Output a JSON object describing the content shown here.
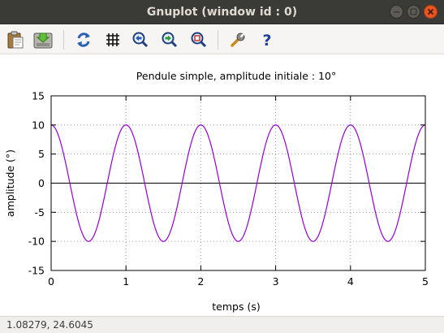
{
  "window": {
    "title": "Gnuplot (window id : 0)"
  },
  "toolbar": {
    "icons": [
      "clipboard-icon",
      "export-icon",
      "replot-icon",
      "grid-icon",
      "zoom-previous-icon",
      "zoom-next-icon",
      "unzoom-icon",
      "settings-icon",
      "help-icon"
    ]
  },
  "status": {
    "coordinates": "1.08279,  24.6045"
  },
  "colors": {
    "curve": "#9400d3",
    "close_button": "#e95420",
    "titlebar": "#3a3a37"
  },
  "chart_data": {
    "type": "line",
    "title": "Pendule simple, amplitude initiale : 10°",
    "xlabel": "temps (s)",
    "ylabel": "amplitude (°)",
    "xlim": [
      0,
      5
    ],
    "ylim": [
      -15,
      15
    ],
    "xticks": [
      "0",
      "1",
      "2",
      "3",
      "4",
      "5"
    ],
    "yticks": [
      "15",
      "10",
      "5",
      "0",
      "-5",
      "-10",
      "-15"
    ],
    "grid": true,
    "series": [
      {
        "function": "10*cos(2*pi*t)",
        "x": [
          0,
          0.25,
          0.5,
          0.75,
          1,
          1.25,
          1.5,
          1.75,
          2,
          2.25,
          2.5,
          2.75,
          3,
          3.25,
          3.5,
          3.75,
          4,
          4.25,
          4.5,
          4.75,
          5
        ],
        "y": [
          10,
          0,
          -10,
          0,
          10,
          0,
          -10,
          0,
          10,
          0,
          -10,
          0,
          10,
          0,
          -10,
          0,
          10,
          0,
          -10,
          0,
          10
        ]
      }
    ]
  }
}
